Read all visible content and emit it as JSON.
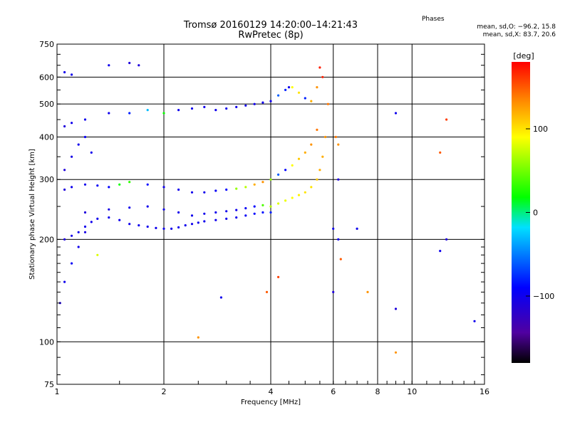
{
  "title_line1": "Tromsø 20160129 14:20:00–14:21:43",
  "title_line2": "RwPretec (8p)",
  "phases_label": "Phases",
  "stats_o": "mean, sd,O: −96.2, 15.8",
  "stats_x": "mean, sd,X:  83.7, 20.6",
  "colorbar": {
    "unit": "[deg]",
    "range": [
      -180,
      180
    ],
    "tick_labels": [
      "100",
      "0",
      "−100"
    ],
    "tick_values": [
      100,
      0,
      -100
    ]
  },
  "chart_data": {
    "type": "scatter",
    "xlabel": "Frequency [MHz]",
    "ylabel": "Stationary phase Virtual Height [km]",
    "xscale": "log",
    "yscale": "log",
    "xlim": [
      1,
      16
    ],
    "ylim": [
      75,
      750
    ],
    "x_ticks": [
      1,
      2,
      4,
      6,
      8,
      10,
      16
    ],
    "x_tick_labels": [
      "1",
      "2",
      "4",
      "6",
      "8",
      "10",
      "16"
    ],
    "y_ticks": [
      75,
      100,
      200,
      300,
      400,
      500,
      600,
      750
    ],
    "y_tick_labels": [
      "75",
      "100",
      "200",
      "300",
      "400",
      "500",
      "600",
      "750"
    ],
    "grid": true,
    "series": [
      {
        "x": [
          1.05,
          1.1,
          1.15,
          1.2,
          1.25,
          1.3,
          1.4,
          1.5,
          1.6,
          1.7,
          1.8,
          1.9,
          2.0,
          2.1,
          2.2,
          2.3,
          2.4,
          2.5,
          2.6,
          2.8,
          3.0,
          3.2,
          3.4,
          3.6,
          3.8,
          4.0
        ],
        "y": [
          200,
          205,
          210,
          218,
          225,
          230,
          232,
          228,
          222,
          220,
          218,
          216,
          215,
          215,
          217,
          220,
          222,
          224,
          226,
          228,
          230,
          232,
          235,
          238,
          240,
          240
        ],
        "phase": [
          -110,
          -105,
          -100,
          -100,
          -100,
          -100,
          -100,
          -100,
          -100,
          -100,
          -100,
          -100,
          -100,
          -100,
          -100,
          -100,
          -100,
          -100,
          -100,
          -100,
          -100,
          -100,
          -95,
          -90,
          -85,
          -80
        ]
      },
      {
        "x": [
          1.2,
          1.4,
          1.6,
          1.8,
          2.0,
          2.2,
          2.4,
          2.6,
          2.8,
          3.0,
          3.2,
          3.4,
          3.6,
          3.8,
          4.0,
          4.2,
          4.4,
          4.6,
          4.8,
          5.0,
          5.2,
          5.4,
          5.5,
          5.6,
          5.7,
          5.8
        ],
        "y": [
          240,
          245,
          248,
          250,
          245,
          240,
          235,
          238,
          240,
          242,
          244,
          247,
          250,
          252,
          250,
          255,
          260,
          265,
          270,
          275,
          285,
          300,
          320,
          350,
          400,
          500
        ],
        "phase": [
          -110,
          -105,
          -100,
          -100,
          -100,
          -100,
          -100,
          -100,
          -100,
          -100,
          -100,
          -95,
          -90,
          40,
          70,
          80,
          85,
          90,
          95,
          100,
          100,
          110,
          120,
          120,
          130,
          140
        ]
      },
      {
        "x": [
          1.05,
          1.1,
          1.2,
          1.3,
          1.4,
          1.5,
          1.6,
          1.8,
          2.0,
          2.2,
          2.4,
          2.6,
          2.8,
          3.0,
          3.2,
          3.4,
          3.6,
          3.8,
          4.0,
          4.2,
          4.4,
          4.6,
          4.8,
          5.0,
          5.2,
          5.4
        ],
        "y": [
          280,
          285,
          290,
          288,
          285,
          290,
          295,
          290,
          285,
          280,
          275,
          275,
          278,
          280,
          282,
          285,
          290,
          295,
          300,
          310,
          320,
          330,
          345,
          360,
          380,
          420
        ],
        "phase": [
          -110,
          -100,
          -100,
          -95,
          -90,
          20,
          30,
          -90,
          -100,
          -100,
          -100,
          -100,
          -95,
          -90,
          60,
          70,
          120,
          130,
          60,
          -60,
          -90,
          90,
          110,
          120,
          130,
          140
        ]
      },
      {
        "x": [
          1.05,
          1.1,
          1.2,
          1.4,
          1.6,
          1.8,
          2.0,
          2.2,
          2.4,
          2.6,
          2.8,
          3.0,
          3.2,
          3.4,
          3.6,
          3.8,
          4.0,
          4.2,
          4.4,
          4.6,
          4.8,
          5.0,
          5.2,
          5.4,
          5.6
        ],
        "y": [
          430,
          440,
          450,
          470,
          470,
          480,
          470,
          480,
          485,
          490,
          480,
          485,
          490,
          495,
          500,
          505,
          510,
          530,
          550,
          560,
          540,
          520,
          510,
          560,
          600
        ],
        "phase": [
          -110,
          -100,
          -100,
          -100,
          -80,
          -30,
          20,
          -100,
          -100,
          -100,
          -100,
          -100,
          -100,
          -100,
          -100,
          -100,
          -100,
          -60,
          -80,
          90,
          100,
          -80,
          120,
          130,
          170
        ]
      },
      {
        "x": [
          1.02,
          1.05,
          1.1,
          1.15,
          1.2
        ],
        "y": [
          130,
          150,
          170,
          190,
          210
        ],
        "phase": [
          -110,
          -100,
          -95,
          -100,
          -105
        ]
      },
      {
        "x": [
          1.05,
          1.1,
          1.15,
          1.2,
          1.25
        ],
        "y": [
          320,
          350,
          380,
          400,
          360
        ],
        "phase": [
          -110,
          -105,
          -100,
          -95,
          -100
        ]
      },
      {
        "x": [
          1.05,
          1.1,
          1.4,
          1.6,
          1.7,
          4.5,
          5.5,
          6.1,
          6.2,
          6.2,
          6.2,
          6.3,
          7.0,
          7.5,
          9.0,
          9.0,
          9.0,
          12.0,
          12.0,
          12.5,
          12.5,
          15.0,
          2.5,
          2.9,
          3.9,
          6.0,
          6.0,
          1.3,
          4.2
        ],
        "y": [
          620,
          610,
          650,
          660,
          650,
          560,
          640,
          400,
          380,
          300,
          200,
          175,
          215,
          140,
          125,
          470,
          93,
          185,
          360,
          450,
          200,
          115,
          103,
          135,
          140,
          215,
          140,
          180,
          155
        ],
        "phase": [
          -100,
          -100,
          -100,
          -110,
          -110,
          -100,
          170,
          140,
          130,
          -110,
          -100,
          150,
          -100,
          130,
          -110,
          -100,
          130,
          -100,
          150,
          160,
          -110,
          -100,
          130,
          -100,
          150,
          -100,
          -110,
          80,
          160
        ]
      }
    ]
  }
}
